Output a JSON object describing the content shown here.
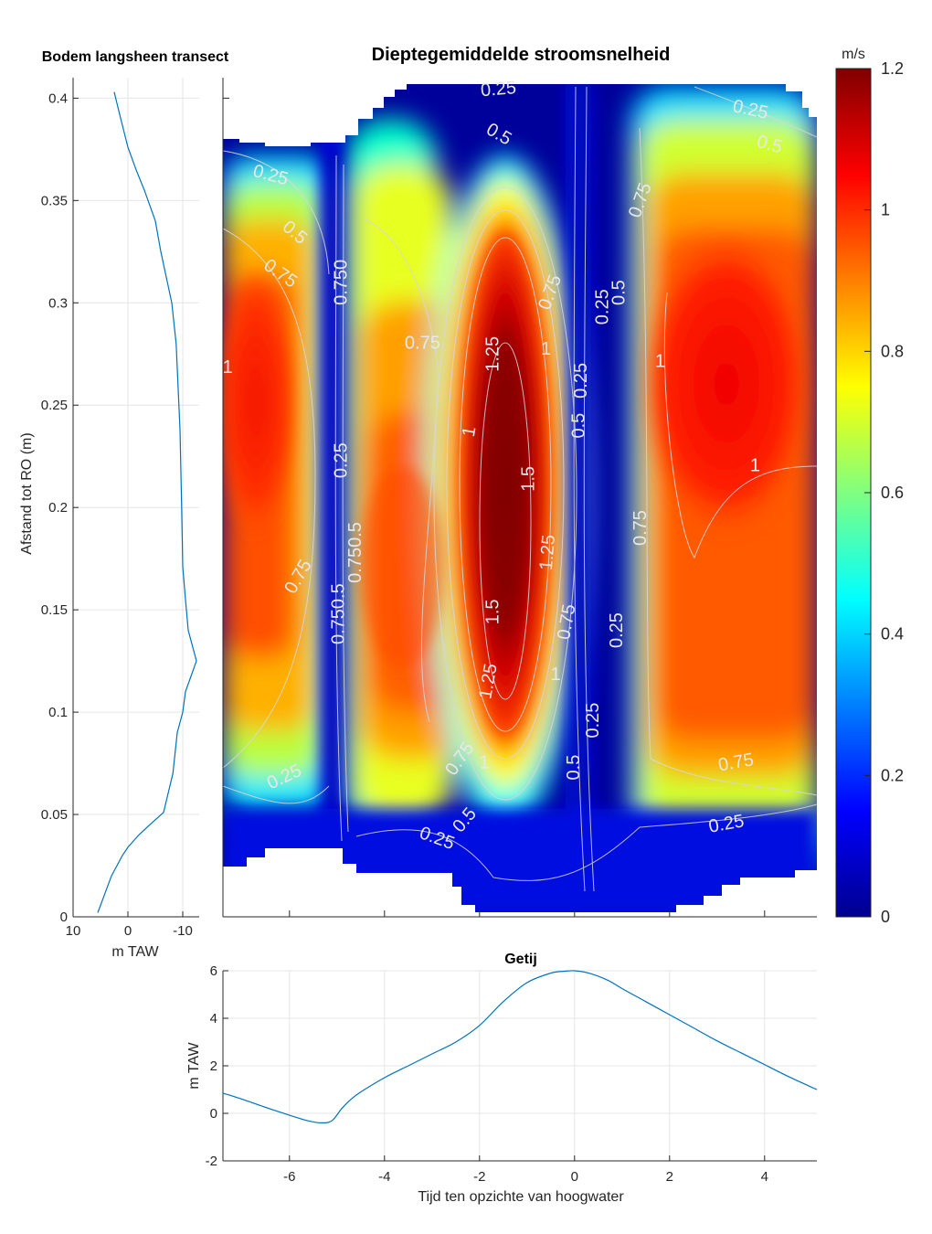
{
  "chart_data": [
    {
      "type": "line",
      "title": "Bodem langsheen transect",
      "xlabel": "m TAW",
      "ylabel": "Afstand tot RO (m)",
      "xlim": [
        10,
        -13
      ],
      "ylim": [
        0,
        0.41
      ],
      "x_reversed": true,
      "xticks": [
        10,
        0,
        -10
      ],
      "yticks": [
        0,
        0.05,
        0.1,
        0.15,
        0.2,
        0.25,
        0.3,
        0.35,
        0.4
      ],
      "grid": true,
      "line_color": "#0072bd",
      "series": [
        {
          "x": [
            5.5,
            3,
            1,
            0,
            -2,
            -4,
            -6.5,
            -8.2,
            -9,
            -10,
            -10.5,
            -12.5,
            -11,
            -10.5,
            -10,
            -9.8,
            -9.5,
            -9.2,
            -8.8,
            -8,
            -6,
            -5,
            -3,
            -1.5,
            0,
            1.5,
            2.5
          ],
          "y": [
            0.002,
            0.02,
            0.03,
            0.034,
            0.04,
            0.045,
            0.051,
            0.07,
            0.09,
            0.1,
            0.11,
            0.125,
            0.14,
            0.155,
            0.171,
            0.2,
            0.238,
            0.256,
            0.28,
            0.3,
            0.325,
            0.34,
            0.355,
            0.365,
            0.376,
            0.392,
            0.403
          ]
        }
      ]
    },
    {
      "type": "heatmap",
      "title": "Dieptegemiddelde stroomsnelheid",
      "colorbar_label": "m/s",
      "clim": [
        0,
        1.2
      ],
      "colorbar_ticks": [
        0,
        0.2,
        0.4,
        0.6,
        0.8,
        1,
        1.2
      ],
      "colormap": "jet",
      "xlim": [
        -7.4,
        5.1
      ],
      "ylim": [
        0,
        0.41
      ],
      "contour_levels": [
        0.25,
        0.5,
        0.75,
        1,
        1.25,
        1.5
      ],
      "contour_labels": [
        {
          "text": "0.25",
          "x": -6.4,
          "y": 0.362,
          "angle": 15
        },
        {
          "text": "0.25",
          "x": -1.6,
          "y": 0.404,
          "angle": -5
        },
        {
          "text": "0.25",
          "x": 3.7,
          "y": 0.394,
          "angle": 12
        },
        {
          "text": "0.5",
          "x": -1.6,
          "y": 0.382,
          "angle": 30
        },
        {
          "text": "0.5",
          "x": 4.1,
          "y": 0.377,
          "angle": 15
        },
        {
          "text": "0.5",
          "x": -5.9,
          "y": 0.334,
          "angle": 40
        },
        {
          "text": "0.75",
          "x": -6.2,
          "y": 0.314,
          "angle": 35
        },
        {
          "text": "0.75",
          "x": 1.4,
          "y": 0.35,
          "angle": -70
        },
        {
          "text": "0.750",
          "x": -4.9,
          "y": 0.31,
          "angle": -90
        },
        {
          "text": "0.75",
          "x": -3.2,
          "y": 0.28,
          "angle": 0
        },
        {
          "text": "1.25",
          "x": -1.7,
          "y": 0.275,
          "angle": -90
        },
        {
          "text": "1",
          "x": -0.6,
          "y": 0.277,
          "angle": 0
        },
        {
          "text": "0.75",
          "x": -0.5,
          "y": 0.305,
          "angle": -70
        },
        {
          "text": "0.5",
          "x": 0.95,
          "y": 0.305,
          "angle": -90
        },
        {
          "text": "0.25",
          "x": 0.6,
          "y": 0.298,
          "angle": -90
        },
        {
          "text": "1",
          "x": -7.3,
          "y": 0.268,
          "angle": 0
        },
        {
          "text": "1",
          "x": 1.8,
          "y": 0.271,
          "angle": 0
        },
        {
          "text": "0.25",
          "x": 0.15,
          "y": 0.262,
          "angle": -90
        },
        {
          "text": "0.5",
          "x": 0.1,
          "y": 0.24,
          "angle": -90
        },
        {
          "text": "1",
          "x": -2.2,
          "y": 0.237,
          "angle": -80
        },
        {
          "text": "0.25",
          "x": -4.9,
          "y": 0.223,
          "angle": -90
        },
        {
          "text": "1",
          "x": 3.8,
          "y": 0.22,
          "angle": 0
        },
        {
          "text": "1.5",
          "x": -0.95,
          "y": 0.214,
          "angle": -90
        },
        {
          "text": "1.25",
          "x": -0.55,
          "y": 0.178,
          "angle": -85
        },
        {
          "text": "0.75",
          "x": 1.4,
          "y": 0.19,
          "angle": -90
        },
        {
          "text": "0.750.5",
          "x": -4.6,
          "y": 0.178,
          "angle": -90
        },
        {
          "text": "0.75",
          "x": -5.8,
          "y": 0.166,
          "angle": -60
        },
        {
          "text": "0.750.5",
          "x": -4.95,
          "y": 0.148,
          "angle": -90
        },
        {
          "text": "1.5",
          "x": -1.7,
          "y": 0.149,
          "angle": -90
        },
        {
          "text": "0.75",
          "x": -0.15,
          "y": 0.144,
          "angle": -80
        },
        {
          "text": "0.25",
          "x": 0.9,
          "y": 0.14,
          "angle": -90
        },
        {
          "text": "1.25",
          "x": -1.8,
          "y": 0.115,
          "angle": -80
        },
        {
          "text": "1",
          "x": -0.4,
          "y": 0.118,
          "angle": 0
        },
        {
          "text": "0.25",
          "x": 0.4,
          "y": 0.096,
          "angle": -90
        },
        {
          "text": "0.75",
          "x": -2.4,
          "y": 0.077,
          "angle": -55
        },
        {
          "text": "1",
          "x": -1.9,
          "y": 0.075,
          "angle": 0
        },
        {
          "text": "0.5",
          "x": 0.0,
          "y": 0.073,
          "angle": -90
        },
        {
          "text": "0.75",
          "x": 3.4,
          "y": 0.075,
          "angle": -10
        },
        {
          "text": "0.25",
          "x": -6.1,
          "y": 0.068,
          "angle": -25
        },
        {
          "text": "0.5",
          "x": -2.3,
          "y": 0.047,
          "angle": -50
        },
        {
          "text": "0.25",
          "x": -2.9,
          "y": 0.038,
          "angle": 20
        },
        {
          "text": "0.25",
          "x": 3.2,
          "y": 0.045,
          "angle": -10
        }
      ]
    },
    {
      "type": "line",
      "title": "Getij",
      "xlabel": "Tijd ten opzichte van hoogwater",
      "ylabel": "m TAW",
      "xlim": [
        -7.4,
        5.1
      ],
      "ylim": [
        -2,
        6
      ],
      "xticks": [
        -6,
        -4,
        -2,
        0,
        2,
        4
      ],
      "yticks": [
        -2,
        0,
        2,
        4,
        6
      ],
      "grid": true,
      "line_color": "#0072bd",
      "series": [
        {
          "x": [
            -7.4,
            -7.0,
            -6.5,
            -6.0,
            -5.6,
            -5.3,
            -5.1,
            -4.9,
            -4.7,
            -4.5,
            -4.0,
            -3.5,
            -3.0,
            -2.5,
            -2.0,
            -1.5,
            -1.0,
            -0.5,
            -0.2,
            0.0,
            0.3,
            0.7,
            1.0,
            1.5,
            2.0,
            2.5,
            3.0,
            3.5,
            4.0,
            4.5,
            5.1
          ],
          "y": [
            0.85,
            0.6,
            0.25,
            -0.08,
            -0.32,
            -0.4,
            -0.3,
            0.2,
            0.6,
            0.9,
            1.5,
            2.0,
            2.5,
            3.0,
            3.7,
            4.7,
            5.5,
            5.9,
            5.98,
            6.0,
            5.9,
            5.6,
            5.25,
            4.7,
            4.15,
            3.6,
            3.05,
            2.55,
            2.05,
            1.55,
            1.0
          ]
        }
      ]
    }
  ]
}
